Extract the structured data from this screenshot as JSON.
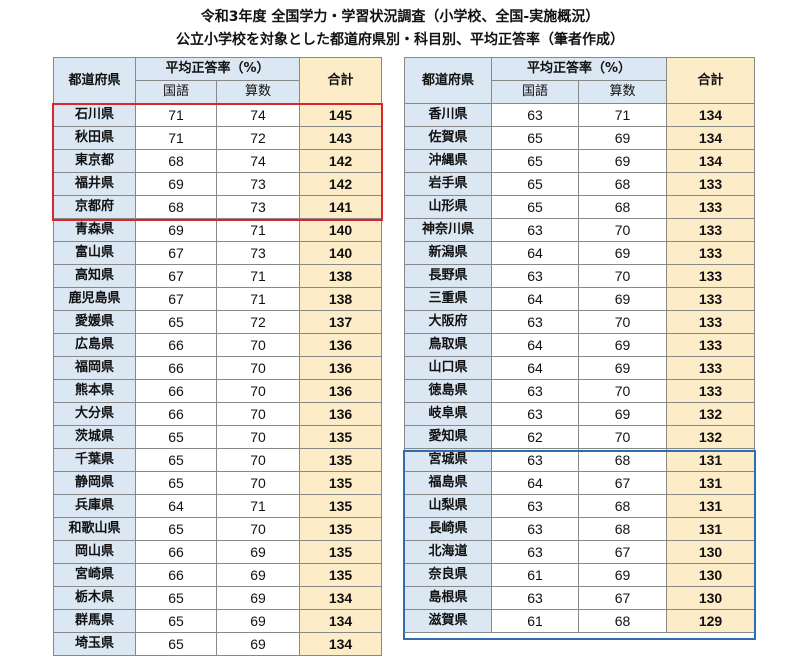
{
  "title_line1": "令和3年度 全国学力・学習状況調査（小学校、全国-実施概況）",
  "title_line2": "公立小学校を対象とした都道府県別・科目別、平均正答率（筆者作成）",
  "headers": {
    "prefecture": "都道府県",
    "avg": "平均正答率（%）",
    "japanese": "国語",
    "math": "算数",
    "total": "合計"
  },
  "colors": {
    "header_blue": "#dbe7f3",
    "total_bg": "#fdecc8",
    "top_box": "#d9262c",
    "bottom_box": "#2f6db0"
  },
  "left_rows": [
    {
      "pref": "石川県",
      "jp": "71",
      "math": "74",
      "total": "145"
    },
    {
      "pref": "秋田県",
      "jp": "71",
      "math": "72",
      "total": "143"
    },
    {
      "pref": "東京都",
      "jp": "68",
      "math": "74",
      "total": "142"
    },
    {
      "pref": "福井県",
      "jp": "69",
      "math": "73",
      "total": "142"
    },
    {
      "pref": "京都府",
      "jp": "68",
      "math": "73",
      "total": "141"
    },
    {
      "pref": "青森県",
      "jp": "69",
      "math": "71",
      "total": "140"
    },
    {
      "pref": "富山県",
      "jp": "67",
      "math": "73",
      "total": "140"
    },
    {
      "pref": "高知県",
      "jp": "67",
      "math": "71",
      "total": "138"
    },
    {
      "pref": "鹿児島県",
      "jp": "67",
      "math": "71",
      "total": "138"
    },
    {
      "pref": "愛媛県",
      "jp": "65",
      "math": "72",
      "total": "137"
    },
    {
      "pref": "広島県",
      "jp": "66",
      "math": "70",
      "total": "136"
    },
    {
      "pref": "福岡県",
      "jp": "66",
      "math": "70",
      "total": "136"
    },
    {
      "pref": "熊本県",
      "jp": "66",
      "math": "70",
      "total": "136"
    },
    {
      "pref": "大分県",
      "jp": "66",
      "math": "70",
      "total": "136"
    },
    {
      "pref": "茨城県",
      "jp": "65",
      "math": "70",
      "total": "135"
    },
    {
      "pref": "千葉県",
      "jp": "65",
      "math": "70",
      "total": "135"
    },
    {
      "pref": "静岡県",
      "jp": "65",
      "math": "70",
      "total": "135"
    },
    {
      "pref": "兵庫県",
      "jp": "64",
      "math": "71",
      "total": "135"
    },
    {
      "pref": "和歌山県",
      "jp": "65",
      "math": "70",
      "total": "135"
    },
    {
      "pref": "岡山県",
      "jp": "66",
      "math": "69",
      "total": "135"
    },
    {
      "pref": "宮崎県",
      "jp": "66",
      "math": "69",
      "total": "135"
    },
    {
      "pref": "栃木県",
      "jp": "65",
      "math": "69",
      "total": "134"
    },
    {
      "pref": "群馬県",
      "jp": "65",
      "math": "69",
      "total": "134"
    },
    {
      "pref": "埼玉県",
      "jp": "65",
      "math": "69",
      "total": "134"
    }
  ],
  "right_rows": [
    {
      "pref": "香川県",
      "jp": "63",
      "math": "71",
      "total": "134"
    },
    {
      "pref": "佐賀県",
      "jp": "65",
      "math": "69",
      "total": "134"
    },
    {
      "pref": "沖縄県",
      "jp": "65",
      "math": "69",
      "total": "134"
    },
    {
      "pref": "岩手県",
      "jp": "65",
      "math": "68",
      "total": "133"
    },
    {
      "pref": "山形県",
      "jp": "65",
      "math": "68",
      "total": "133"
    },
    {
      "pref": "神奈川県",
      "jp": "63",
      "math": "70",
      "total": "133"
    },
    {
      "pref": "新潟県",
      "jp": "64",
      "math": "69",
      "total": "133"
    },
    {
      "pref": "長野県",
      "jp": "63",
      "math": "70",
      "total": "133"
    },
    {
      "pref": "三重県",
      "jp": "64",
      "math": "69",
      "total": "133"
    },
    {
      "pref": "大阪府",
      "jp": "63",
      "math": "70",
      "total": "133"
    },
    {
      "pref": "鳥取県",
      "jp": "64",
      "math": "69",
      "total": "133"
    },
    {
      "pref": "山口県",
      "jp": "64",
      "math": "69",
      "total": "133"
    },
    {
      "pref": "徳島県",
      "jp": "63",
      "math": "70",
      "total": "133"
    },
    {
      "pref": "岐阜県",
      "jp": "63",
      "math": "69",
      "total": "132"
    },
    {
      "pref": "愛知県",
      "jp": "62",
      "math": "70",
      "total": "132"
    },
    {
      "pref": "宮城県",
      "jp": "63",
      "math": "68",
      "total": "131"
    },
    {
      "pref": "福島県",
      "jp": "64",
      "math": "67",
      "total": "131"
    },
    {
      "pref": "山梨県",
      "jp": "63",
      "math": "68",
      "total": "131"
    },
    {
      "pref": "長崎県",
      "jp": "63",
      "math": "68",
      "total": "131"
    },
    {
      "pref": "北海道",
      "jp": "63",
      "math": "67",
      "total": "130"
    },
    {
      "pref": "奈良県",
      "jp": "61",
      "math": "69",
      "total": "130"
    },
    {
      "pref": "島根県",
      "jp": "63",
      "math": "67",
      "total": "130"
    },
    {
      "pref": "滋賀県",
      "jp": "61",
      "math": "68",
      "total": "129"
    }
  ]
}
